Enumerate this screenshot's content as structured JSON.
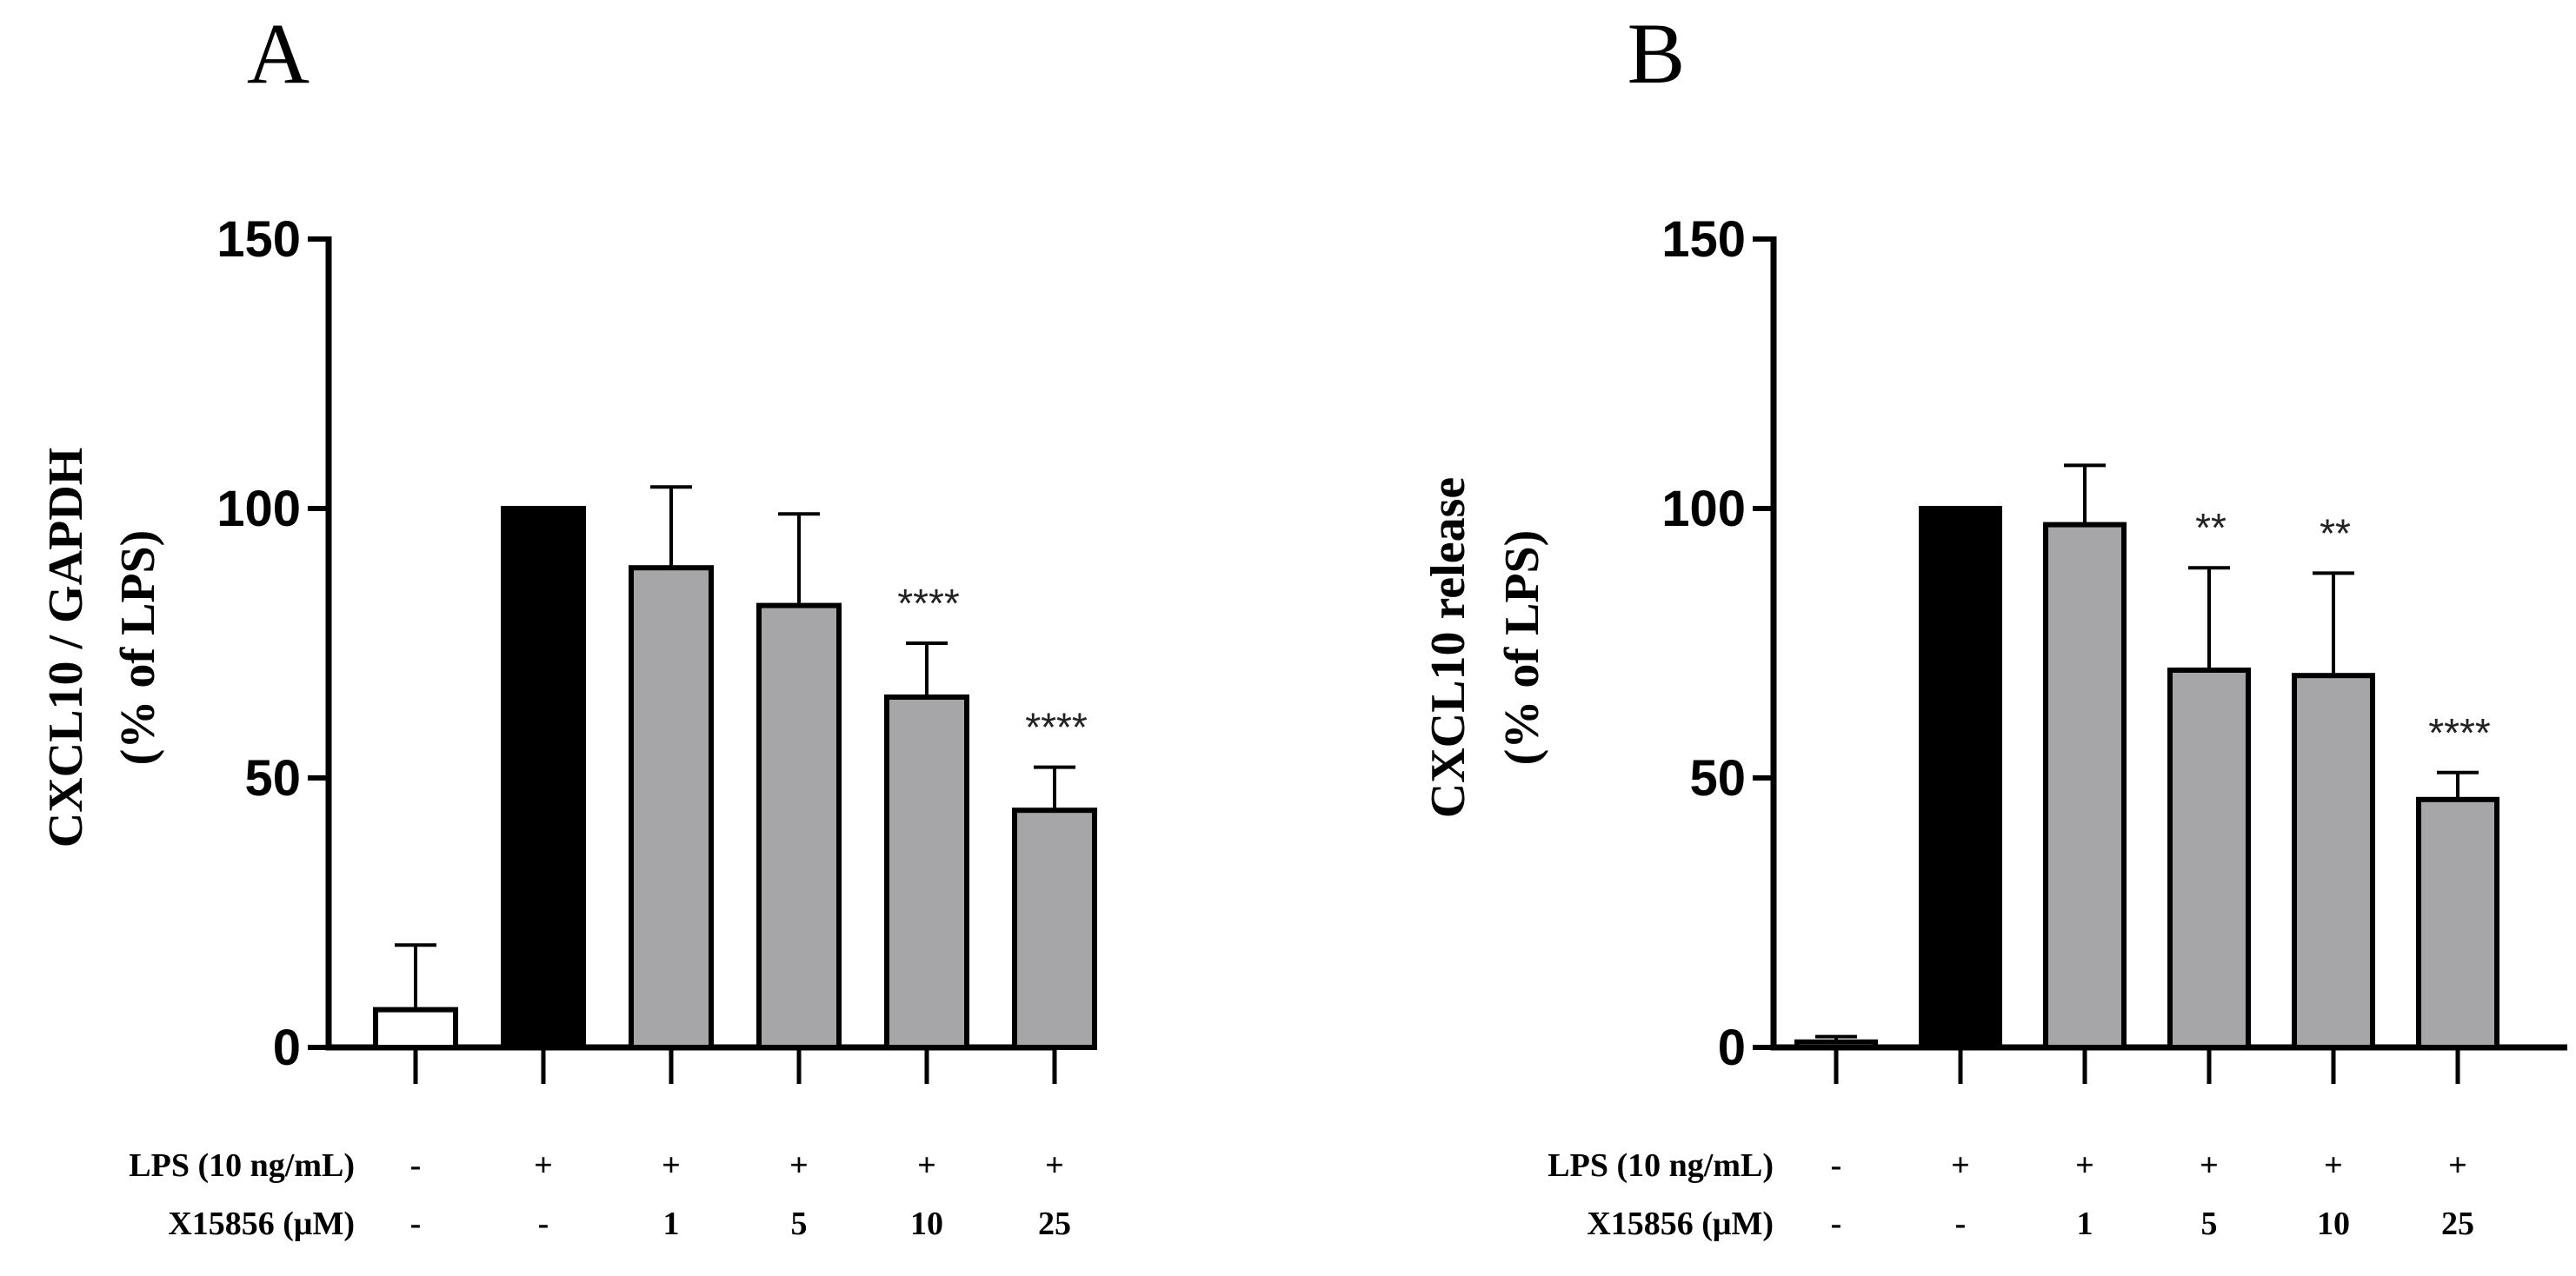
{
  "chart_data": [
    {
      "panel": "A",
      "type": "bar",
      "ylabel_line1": "CXCL10 / GAPDH",
      "ylabel_line2": "(% of LPS)",
      "ylim": [
        0,
        150
      ],
      "yticks": [
        0,
        50,
        100,
        150
      ],
      "bars": [
        {
          "value": 7,
          "err": 12,
          "fill": "#ffffff",
          "sig": ""
        },
        {
          "value": 100,
          "err": 0,
          "fill": "#000000",
          "sig": ""
        },
        {
          "value": 89,
          "err": 15,
          "fill": "#a6a6a8",
          "sig": ""
        },
        {
          "value": 82,
          "err": 17,
          "fill": "#a6a6a8",
          "sig": ""
        },
        {
          "value": 65,
          "err": 10,
          "fill": "#a6a6a8",
          "sig": "****"
        },
        {
          "value": 44,
          "err": 8,
          "fill": "#a6a6a8",
          "sig": "****"
        }
      ],
      "conditions": [
        {
          "label": "LPS (10 ng/mL)",
          "values": [
            "-",
            "+",
            "+",
            "+",
            "+",
            "+"
          ]
        },
        {
          "label": "X15856 (μM)",
          "values": [
            "-",
            "-",
            "1",
            "5",
            "10",
            "25"
          ]
        }
      ]
    },
    {
      "panel": "B",
      "type": "bar",
      "ylabel_line1": "CXCL10 release",
      "ylabel_line2": "(% of LPS)",
      "ylim": [
        0,
        150
      ],
      "yticks": [
        0,
        50,
        100,
        150
      ],
      "bars": [
        {
          "value": 1,
          "err": 1,
          "fill": "#ffffff",
          "sig": ""
        },
        {
          "value": 100,
          "err": 0,
          "fill": "#000000",
          "sig": ""
        },
        {
          "value": 97,
          "err": 11,
          "fill": "#a6a6a8",
          "sig": ""
        },
        {
          "value": 70,
          "err": 19,
          "fill": "#a6a6a8",
          "sig": "**"
        },
        {
          "value": 69,
          "err": 19,
          "fill": "#a6a6a8",
          "sig": "**"
        },
        {
          "value": 46,
          "err": 5,
          "fill": "#a6a6a8",
          "sig": "****"
        }
      ],
      "conditions": [
        {
          "label": "LPS (10 ng/mL)",
          "values": [
            "-",
            "+",
            "+",
            "+",
            "+",
            "+"
          ]
        },
        {
          "label": "X15856 (μM)",
          "values": [
            "-",
            "-",
            "1",
            "5",
            "10",
            "25"
          ]
        }
      ]
    }
  ]
}
